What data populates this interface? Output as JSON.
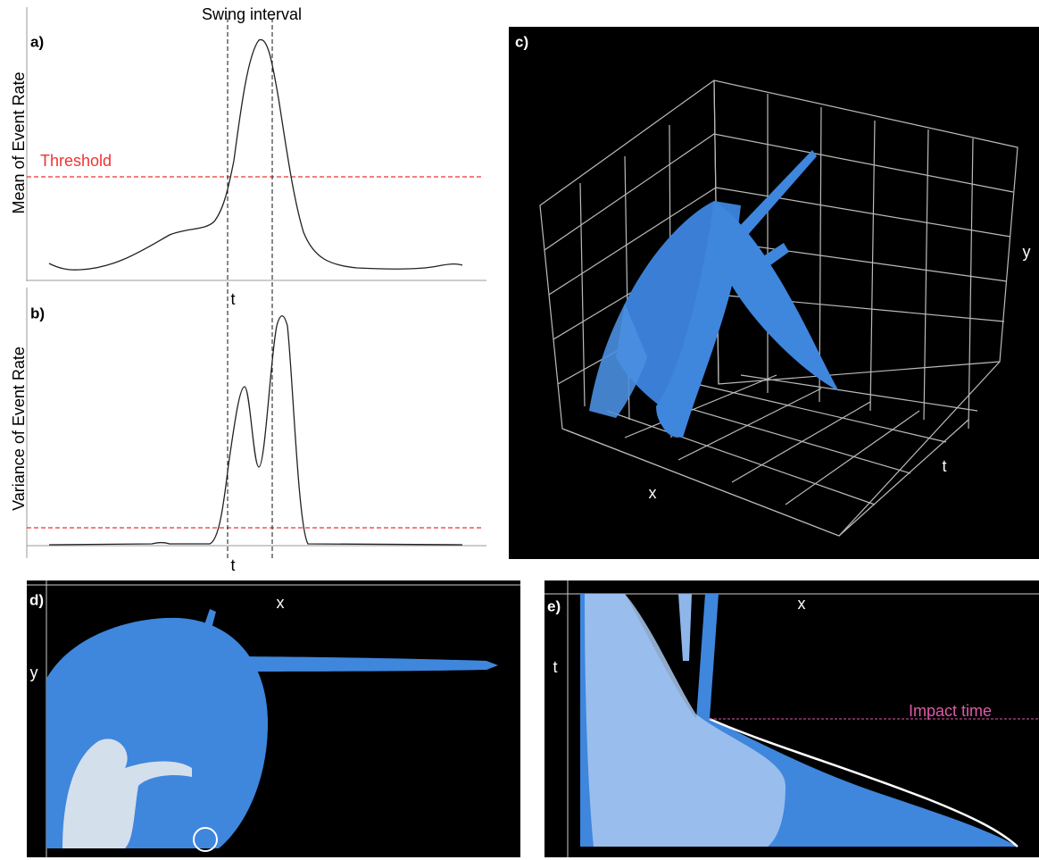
{
  "figure": {
    "swing_label": "Swing interval",
    "panel_a": {
      "label": "a)",
      "ylabel": "Mean of Event Rate",
      "threshold_label": "Threshold",
      "xlabel": "t"
    },
    "panel_b": {
      "label": "b)",
      "ylabel": "Variance of Event Rate",
      "xlabel": "t"
    },
    "panel_c": {
      "label": "c)",
      "ylabel": "y",
      "tlabel": "t",
      "xlabel": "x"
    },
    "panel_d": {
      "label": "d)",
      "xlabel": "x",
      "ylabel": "y"
    },
    "panel_e": {
      "label": "e)",
      "xlabel": "x",
      "tlabel": "t",
      "impact_label": "Impact time"
    }
  }
}
